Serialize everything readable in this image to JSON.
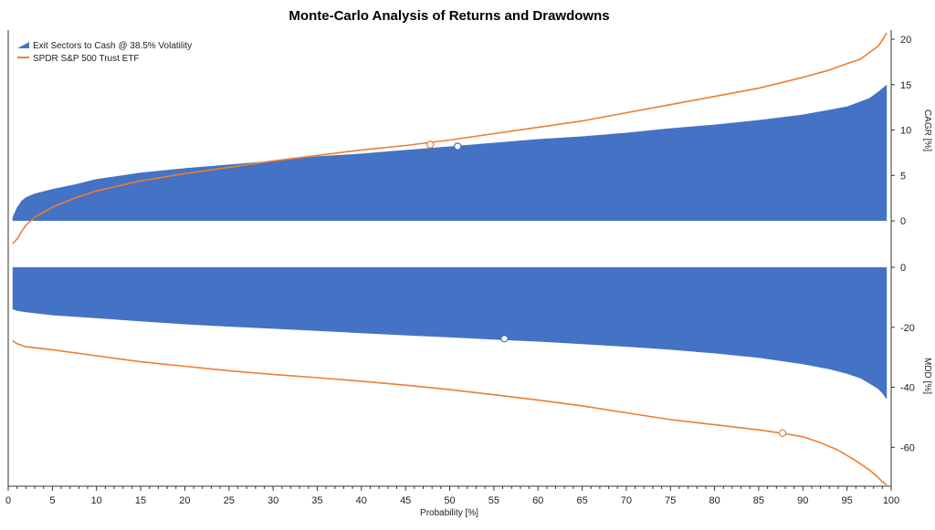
{
  "chart_data": {
    "type": "area",
    "title": "Monte-Carlo Analysis of Returns and Drawdowns",
    "xlabel": "Probability [%]",
    "xlim": [
      0,
      100
    ],
    "xticks": [
      0,
      5,
      10,
      15,
      20,
      25,
      30,
      35,
      40,
      45,
      50,
      55,
      60,
      65,
      70,
      75,
      80,
      85,
      90,
      95,
      100
    ],
    "legend": {
      "position": "top-left",
      "entries": [
        {
          "name": "Exit Sectors to Cash @ 38.5% Volatility",
          "style": "area",
          "color": "#4472c4"
        },
        {
          "name": "SPDR S&P 500 Trust ETF",
          "style": "line",
          "color": "#ed7d31"
        }
      ]
    },
    "panels": [
      {
        "name": "cagr",
        "ylabel": "CAGR [%]",
        "ylim": [
          -3,
          21
        ],
        "yticks": [
          0,
          5,
          10,
          15,
          20
        ],
        "series": [
          {
            "name": "Exit Sectors to Cash @ 38.5% Volatility",
            "style": "area",
            "color": "#4472c4",
            "x": [
              0.5,
              1,
              1.5,
              2,
              3,
              5,
              7.5,
              10,
              15,
              20,
              25,
              30,
              35,
              40,
              45,
              50,
              55,
              60,
              65,
              70,
              75,
              80,
              85,
              90,
              95,
              97.5,
              98.5,
              99.5
            ],
            "y": [
              0.4,
              1.5,
              2.2,
              2.6,
              3.0,
              3.5,
              4.0,
              4.6,
              5.3,
              5.8,
              6.2,
              6.6,
              7.1,
              7.4,
              7.8,
              8.2,
              8.6,
              9.0,
              9.3,
              9.7,
              10.2,
              10.6,
              11.1,
              11.7,
              12.6,
              13.5,
              14.2,
              15.0
            ]
          },
          {
            "name": "SPDR S&P 500 Trust ETF",
            "style": "line",
            "color": "#ed7d31",
            "x": [
              0.5,
              1,
              1.5,
              2,
              3,
              5,
              7.5,
              10,
              15,
              20,
              25,
              30,
              35,
              40,
              45,
              50,
              55,
              60,
              65,
              70,
              75,
              80,
              85,
              90,
              93,
              95,
              96.5,
              97.5,
              98.5,
              99,
              99.5
            ],
            "y": [
              -2.5,
              -2.0,
              -1.2,
              -0.5,
              0.4,
              1.5,
              2.5,
              3.3,
              4.4,
              5.2,
              5.9,
              6.6,
              7.2,
              7.8,
              8.3,
              8.9,
              9.6,
              10.3,
              11.0,
              11.9,
              12.8,
              13.7,
              14.6,
              15.8,
              16.6,
              17.3,
              17.8,
              18.5,
              19.2,
              19.9,
              20.7
            ]
          }
        ],
        "markers": [
          {
            "series": "SPDR S&P 500 Trust ETF",
            "x": 47.8,
            "y": 8.4
          },
          {
            "series": "Exit Sectors to Cash @ 38.5% Volatility",
            "x": 50.9,
            "y": 8.2
          }
        ]
      },
      {
        "name": "mdd",
        "ylabel": "MDD [%]",
        "ylim": [
          -73,
          0
        ],
        "yticks": [
          0,
          -20,
          -40,
          -60
        ],
        "series": [
          {
            "name": "Exit Sectors to Cash @ 38.5% Volatility",
            "style": "area",
            "color": "#4472c4",
            "x": [
              0.5,
              1,
              2,
              5,
              10,
              15,
              20,
              25,
              30,
              35,
              40,
              45,
              50,
              55,
              60,
              65,
              70,
              75,
              80,
              85,
              90,
              93,
              95,
              96.5,
              97.5,
              98.5,
              99,
              99.5
            ],
            "y": [
              -14,
              -14.5,
              -15,
              -16,
              -17,
              -18,
              -19,
              -19.8,
              -20.5,
              -21.2,
              -22,
              -22.7,
              -23.4,
              -24.1,
              -24.8,
              -25.6,
              -26.5,
              -27.5,
              -28.7,
              -30.2,
              -32.3,
              -34,
              -35.5,
              -37,
              -38.7,
              -40.5,
              -42,
              -44
            ]
          },
          {
            "name": "SPDR S&P 500 Trust ETF",
            "style": "line",
            "color": "#ed7d31",
            "x": [
              0.5,
              1,
              2,
              5,
              10,
              15,
              20,
              25,
              30,
              35,
              40,
              45,
              50,
              55,
              60,
              65,
              70,
              75,
              80,
              85,
              88,
              90,
              92,
              94,
              96,
              97.5,
              98.5,
              99,
              99.5
            ],
            "y": [
              -24.5,
              -25.5,
              -26.5,
              -27.5,
              -29.5,
              -31.5,
              -33,
              -34.5,
              -35.7,
              -36.8,
              -38,
              -39.3,
              -40.8,
              -42.5,
              -44.3,
              -46.2,
              -48.5,
              -50.8,
              -52.5,
              -54.2,
              -55.5,
              -56.5,
              -58.5,
              -61,
              -64.5,
              -67.5,
              -70,
              -71.5,
              -72.5
            ]
          }
        ],
        "markers": [
          {
            "series": "Exit Sectors to Cash @ 38.5% Volatility",
            "x": 56.2,
            "y": -23.8
          },
          {
            "series": "SPDR S&P 500 Trust ETF",
            "x": 87.7,
            "y": -55.3
          }
        ]
      }
    ]
  }
}
